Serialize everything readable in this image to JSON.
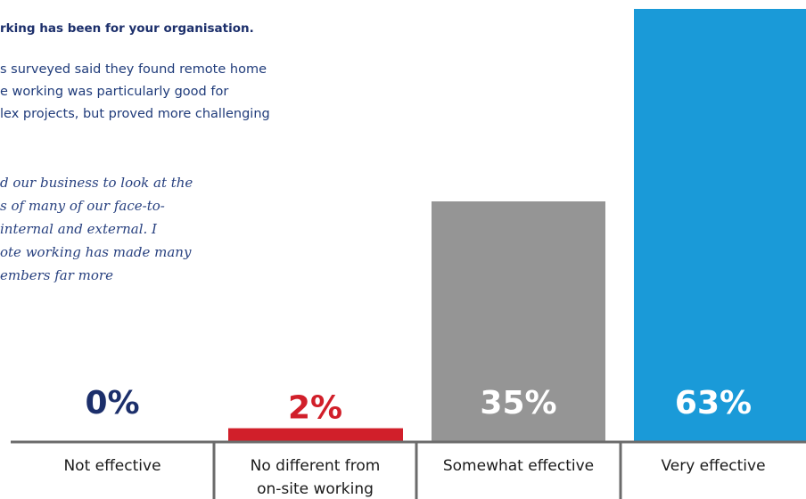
{
  "heading": "rking has been for your organisation.",
  "summary_lines": [
    "s surveyed said they found remote home",
    "e working was particularly good for",
    "lex projects, but proved more challenging"
  ],
  "quote_lines": [
    "d our business to look at the",
    "s of many of our face-to-",
    " internal and external. I",
    "ote working has made many",
    "embers far more"
  ],
  "chart_data": {
    "type": "bar",
    "categories": [
      "Not effective",
      "No different from on-site working",
      "Somewhat effective",
      "Very effective"
    ],
    "category_lines": [
      [
        "Not effective"
      ],
      [
        "No different from",
        "on-site working"
      ],
      [
        "Somewhat effective"
      ],
      [
        "Very effective"
      ]
    ],
    "values": [
      0,
      2,
      35,
      63
    ],
    "value_labels": [
      "0%",
      "2%",
      "35%",
      "63%"
    ],
    "colors": [
      "#1c2f6b",
      "#d11f2a",
      "#959595",
      "#1a9ad8"
    ],
    "label_colors": [
      "#1c2f6b",
      "#d11f2a",
      "#ffffff",
      "#ffffff"
    ],
    "ylim": [
      0,
      63
    ],
    "grid": false,
    "title": "",
    "xlabel": "",
    "ylabel": ""
  }
}
